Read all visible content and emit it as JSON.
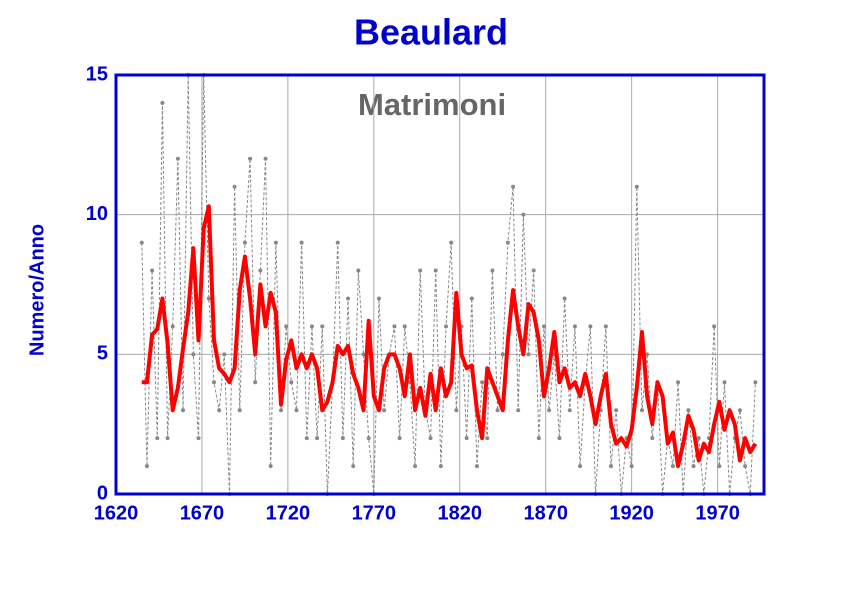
{
  "chart_data": {
    "type": "line",
    "title": "Beaulard",
    "subtitle": "Matrimoni",
    "y_label": "Numero/Anno",
    "x": [
      1635,
      1638,
      1641,
      1644,
      1647,
      1650,
      1653,
      1656,
      1659,
      1662,
      1665,
      1668,
      1671,
      1674,
      1677,
      1680,
      1683,
      1686,
      1689,
      1692,
      1695,
      1698,
      1701,
      1704,
      1707,
      1710,
      1713,
      1716,
      1719,
      1722,
      1725,
      1728,
      1731,
      1734,
      1737,
      1740,
      1743,
      1746,
      1749,
      1752,
      1755,
      1758,
      1761,
      1764,
      1767,
      1770,
      1773,
      1776,
      1779,
      1782,
      1785,
      1788,
      1791,
      1794,
      1797,
      1800,
      1803,
      1806,
      1809,
      1812,
      1815,
      1818,
      1821,
      1824,
      1827,
      1830,
      1833,
      1836,
      1839,
      1842,
      1845,
      1848,
      1851,
      1854,
      1857,
      1860,
      1863,
      1866,
      1869,
      1872,
      1875,
      1878,
      1881,
      1884,
      1887,
      1890,
      1893,
      1896,
      1899,
      1902,
      1905,
      1908,
      1911,
      1914,
      1917,
      1920,
      1923,
      1926,
      1929,
      1932,
      1935,
      1938,
      1941,
      1944,
      1947,
      1950,
      1953,
      1956,
      1959,
      1962,
      1965,
      1968,
      1971,
      1974,
      1977,
      1980,
      1983,
      1986,
      1989,
      1992
    ],
    "series": [
      {
        "color": "#888888",
        "line_style": "dashed",
        "markers": true,
        "values": [
          9,
          1,
          8,
          2,
          14,
          2,
          6,
          12,
          3,
          15,
          5,
          2,
          15,
          7,
          4,
          3,
          5,
          0,
          11,
          3,
          9,
          12,
          4,
          8,
          12,
          1,
          9,
          3,
          6,
          4,
          3,
          9,
          2,
          6,
          2,
          6,
          0,
          4,
          9,
          2,
          7,
          1,
          8,
          5,
          2,
          0,
          7,
          3,
          5,
          6,
          2,
          6,
          4,
          1,
          8,
          3,
          2,
          8,
          1,
          6,
          9,
          3,
          6,
          2,
          7,
          1,
          4,
          2,
          8,
          3,
          5,
          9,
          11,
          3,
          10,
          5,
          8,
          2,
          6,
          3,
          5,
          2,
          7,
          3,
          6,
          1,
          4,
          6,
          0,
          3,
          6,
          1,
          3,
          0,
          2,
          1,
          11,
          3,
          5,
          2,
          4,
          0,
          2,
          1,
          4,
          0,
          3,
          1,
          2,
          0,
          2,
          6,
          1,
          4,
          0,
          2,
          3,
          1,
          0,
          4
        ]
      },
      {
        "color": "#ff0000",
        "line_style": "solid",
        "markers": false,
        "values": [
          4.0,
          4.0,
          5.7,
          5.9,
          7.0,
          5.4,
          3.0,
          3.8,
          5.2,
          6.5,
          8.8,
          5.5,
          9.5,
          10.3,
          5.5,
          4.5,
          4.3,
          4.0,
          4.5,
          7.3,
          8.5,
          7.0,
          5.0,
          7.5,
          6.0,
          7.2,
          6.5,
          3.2,
          4.8,
          5.5,
          4.5,
          5.0,
          4.5,
          5.0,
          4.5,
          3.0,
          3.3,
          4.0,
          5.3,
          5.0,
          5.3,
          4.3,
          3.8,
          3.0,
          6.2,
          3.5,
          3.0,
          4.5,
          5.0,
          5.0,
          4.5,
          3.5,
          5.0,
          3.0,
          3.8,
          2.8,
          4.3,
          3.0,
          4.5,
          3.5,
          4.0,
          7.2,
          5.0,
          4.5,
          4.6,
          3.0,
          2.0,
          4.5,
          4.0,
          3.5,
          3.0,
          5.5,
          7.3,
          6.0,
          5.0,
          6.8,
          6.5,
          5.5,
          3.5,
          4.5,
          5.8,
          4.0,
          4.5,
          3.8,
          4.0,
          3.5,
          4.3,
          3.5,
          2.5,
          3.5,
          4.3,
          2.5,
          1.8,
          2.0,
          1.7,
          2.3,
          3.8,
          5.8,
          3.5,
          2.5,
          4.0,
          3.5,
          1.8,
          2.2,
          1.0,
          1.8,
          2.8,
          2.3,
          1.2,
          1.8,
          1.5,
          2.5,
          3.3,
          2.3,
          3.0,
          2.5,
          1.2,
          2.0,
          1.5,
          1.8
        ]
      }
    ],
    "xlim": [
      1620,
      1997
    ],
    "ylim": [
      0,
      15
    ],
    "xticks": [
      1620,
      1670,
      1720,
      1770,
      1820,
      1870,
      1920,
      1970
    ],
    "yticks": [
      0,
      5,
      10,
      15
    ],
    "grid": true
  }
}
